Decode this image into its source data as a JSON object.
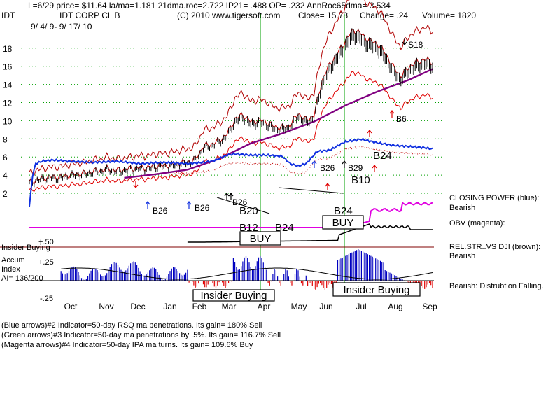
{
  "header": {
    "line1": "L=6/29  price= $11.64  la/ma=1.181 21dma.roc=2.722 IP21= .488 OP= .232 AnnRoc65dma= 3.534",
    "ticker": "IDT",
    "name": "IDT CORP CL B",
    "copyright": "(C) 2010 www.tigersoft.com",
    "close": "Close=  15.78",
    "change": "Change= .24",
    "volume": "Volume= 1820",
    "range": "9/ 4/ 9- 9/ 17/ 10"
  },
  "right_labels": {
    "closing_power": "CLOSING POWER (blue):",
    "closing_power_state": "Bearish",
    "obv": "OBV (magenta):",
    "relstr": "REL.STR..VS DJI (brown):",
    "relstr_state": "Bearish",
    "accum_state": "Bearish: Distrubtion Falling."
  },
  "left_labels": {
    "insider": "Insider Buying",
    "plus50": "+.50",
    "accum": "Accum",
    "index": "Index",
    "ai": "AI= 136/200",
    "plus25": "+.25",
    "minus25": "-.25"
  },
  "boxes": {
    "buy1": "BUY",
    "buy2": "BUY",
    "insider1": "Insider Buying",
    "insider2": "Insider Buying"
  },
  "signals": {
    "b26a": "B26",
    "b26b": "B26",
    "b26c": "B26",
    "b20": "B20",
    "b12": "B12",
    "b24a": "B24",
    "b26d": "B26",
    "b24b": "B24",
    "b29": "B29",
    "b10": "B10",
    "b24c": "B24",
    "b6": "B6",
    "s18": "S18"
  },
  "footer": {
    "line1": "(Blue arrows)#2 Indicator=50-day RSQ ma penetrations. Its gain= 180% Sell",
    "line2": "(Green arrows)#3 Indicator=50-day ma penetrations by .5%. Its gain= 116.7% Sell",
    "line3": "(Magenta arrows)#4 Indicator=50-day IPA ma turns. Its gain= 109.6% Buy"
  },
  "chart_data": {
    "type": "line",
    "ylabel_ticks": [
      2,
      4,
      6,
      8,
      10,
      12,
      14,
      16,
      18
    ],
    "ylim": [
      2,
      18
    ],
    "x_months": [
      "Oct",
      "Nov",
      "Dec",
      "Jan",
      "Feb",
      "Mar",
      "Apr",
      "May",
      "Jun",
      "Jul",
      "Aug",
      "Sep"
    ],
    "grid": true,
    "price_series": {
      "name": "price",
      "x": [
        0,
        5,
        10,
        15,
        20,
        25,
        30,
        35,
        40,
        45,
        50,
        55,
        60,
        65,
        70,
        75,
        80,
        85,
        90,
        95,
        100,
        105,
        110,
        115,
        120,
        125,
        130,
        135,
        140,
        145,
        150,
        155,
        160,
        165,
        170,
        175,
        180,
        185,
        190,
        195,
        200,
        205,
        210,
        215,
        220,
        225,
        230,
        235,
        240,
        245,
        250,
        255
      ],
      "values": [
        3.1,
        3.4,
        3.6,
        3.7,
        3.7,
        3.9,
        4.0,
        4.1,
        4.3,
        4.4,
        4.6,
        4.4,
        4.5,
        4.6,
        4.7,
        4.7,
        4.9,
        4.9,
        5.0,
        5.2,
        5.3,
        5.6,
        7.0,
        7.2,
        7.6,
        8.3,
        9.9,
        10.4,
        9.6,
        9.8,
        9.6,
        9.1,
        9.0,
        9.3,
        10.5,
        9.8,
        10.3,
        14.0,
        15.8,
        17.0,
        18.3,
        19.5,
        19.0,
        18.3,
        18.0,
        17.0,
        15.5,
        14.5,
        15.5,
        16.0,
        16.3,
        16.0
      ]
    },
    "ma50_series": {
      "name": "50-day ma",
      "x": [
        60,
        80,
        100,
        120,
        140,
        160,
        180,
        200,
        220,
        240,
        255
      ],
      "values": [
        3.7,
        4.1,
        4.6,
        5.8,
        7.5,
        8.6,
        9.9,
        11.7,
        13.2,
        14.5,
        15.7
      ]
    },
    "closing_power_series": {
      "name": "CLOSING POWER (blue)",
      "x": [
        0,
        2,
        4,
        8,
        15,
        25,
        40,
        55,
        70,
        85,
        100,
        110,
        115,
        118,
        125,
        130,
        140,
        150,
        160,
        165,
        170,
        175,
        182,
        190,
        200,
        210,
        220,
        230,
        240,
        250,
        255
      ],
      "values": [
        0.2,
        0.45,
        0.55,
        0.57,
        0.58,
        0.57,
        0.56,
        0.57,
        0.55,
        0.56,
        0.55,
        0.56,
        0.57,
        0.58,
        0.62,
        0.63,
        0.62,
        0.62,
        0.61,
        0.55,
        0.53,
        0.55,
        0.65,
        0.66,
        0.73,
        0.75,
        0.72,
        0.7,
        0.69,
        0.68,
        0.67
      ]
    },
    "accum_index": {
      "name": "Accum Index",
      "ticks": [
        0.5,
        0.25,
        -0.25
      ],
      "ai": "136/200"
    }
  }
}
